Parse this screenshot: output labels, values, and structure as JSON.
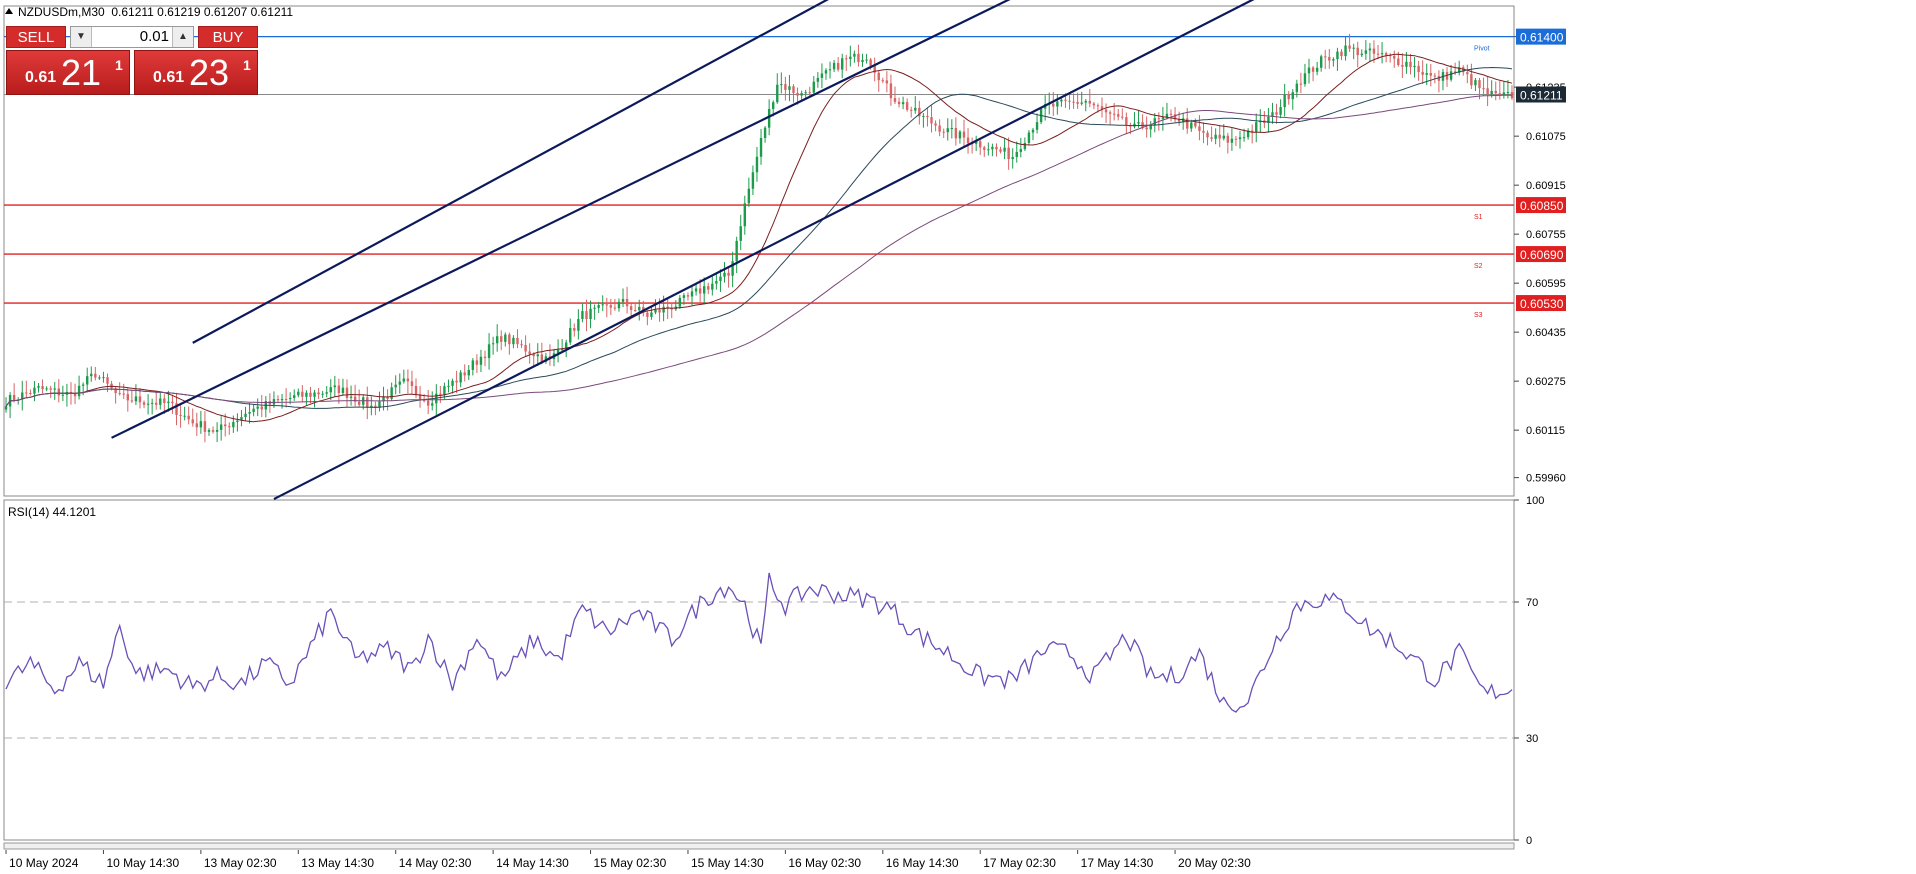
{
  "header": {
    "symbol": "NZDUSDm,M30",
    "ohlc": "0.61211 0.61219 0.61207 0.61211"
  },
  "trade_panel": {
    "sell_label": "SELL",
    "buy_label": "BUY",
    "lot": "0.01",
    "sell_small": "0.61",
    "sell_big": "21",
    "sell_sup": "1",
    "buy_small": "0.61",
    "buy_big": "23",
    "buy_sup": "1"
  },
  "colors": {
    "bull": "#1a9c4a",
    "bear": "#d86464",
    "channel": "#0c1a5c",
    "level": "#e02020",
    "pivot": "#1a6cd8",
    "ma_fast": "#7a1f1f",
    "ma_mid": "#2a4a5a",
    "ma_slow": "#7a4a7a",
    "rsi": "#6a50b8"
  },
  "chart_data": [
    {
      "type": "candlestick",
      "title": "NZDUSDm,M30",
      "ylim": [
        0.599,
        0.615
      ],
      "y_ticks": [
        "0.61400",
        "0.61235",
        "0.61075",
        "0.60915",
        "0.60755",
        "0.60595",
        "0.60435",
        "0.60275",
        "0.60115",
        "0.59960"
      ],
      "x_ticks": [
        "10 May 2024",
        "10 May 14:30",
        "13 May 02:30",
        "13 May 14:30",
        "14 May 02:30",
        "14 May 14:30",
        "15 May 02:30",
        "15 May 14:30",
        "16 May 02:30",
        "16 May 14:30",
        "17 May 02:30",
        "17 May 14:30",
        "20 May 02:30"
      ],
      "current_price": "0.61211",
      "close_path": [
        [
          0,
          0.6021
        ],
        [
          8,
          0.6025
        ],
        [
          16,
          0.6023
        ],
        [
          22,
          0.603
        ],
        [
          28,
          0.6022
        ],
        [
          40,
          0.602
        ],
        [
          46,
          0.6014
        ],
        [
          52,
          0.6011
        ],
        [
          60,
          0.6018
        ],
        [
          70,
          0.6022
        ],
        [
          82,
          0.6025
        ],
        [
          90,
          0.6019
        ],
        [
          98,
          0.6027
        ],
        [
          104,
          0.6021
        ],
        [
          112,
          0.6029
        ],
        [
          122,
          0.6042
        ],
        [
          134,
          0.6034
        ],
        [
          142,
          0.6049
        ],
        [
          152,
          0.6053
        ],
        [
          158,
          0.6049
        ],
        [
          166,
          0.6053
        ],
        [
          172,
          0.6058
        ],
        [
          178,
          0.6062
        ],
        [
          182,
          0.6085
        ],
        [
          186,
          0.6106
        ],
        [
          190,
          0.6125
        ],
        [
          196,
          0.6121
        ],
        [
          206,
          0.6132
        ],
        [
          212,
          0.6134
        ],
        [
          218,
          0.6121
        ],
        [
          224,
          0.6115
        ],
        [
          232,
          0.6109
        ],
        [
          240,
          0.6105
        ],
        [
          248,
          0.6101
        ],
        [
          256,
          0.6117
        ],
        [
          266,
          0.6119
        ],
        [
          272,
          0.6114
        ],
        [
          278,
          0.611
        ],
        [
          288,
          0.6114
        ],
        [
          296,
          0.6107
        ],
        [
          302,
          0.6106
        ],
        [
          306,
          0.6109
        ],
        [
          312,
          0.6114
        ],
        [
          318,
          0.6125
        ],
        [
          324,
          0.6132
        ],
        [
          330,
          0.6136
        ],
        [
          338,
          0.6134
        ],
        [
          346,
          0.6131
        ],
        [
          352,
          0.6126
        ],
        [
          358,
          0.6129
        ],
        [
          364,
          0.6122
        ],
        [
          368,
          0.612
        ],
        [
          371,
          0.6121
        ]
      ],
      "indicators": [
        "Moving Average (red)",
        "Moving Average (teal)",
        "Moving Average (purple)"
      ],
      "horizontal_levels": [
        {
          "price": "0.61400",
          "label": "Pivot",
          "color": "#1a6cd8"
        },
        {
          "price": "0.60850",
          "label": "S1",
          "color": "#e02020"
        },
        {
          "price": "0.60690",
          "label": "S2",
          "color": "#e02020"
        },
        {
          "price": "0.60530",
          "label": "S3",
          "color": "#e02020"
        }
      ],
      "channel_lines": [
        {
          "from": [
            "13 May 08:00",
            0.604
          ],
          "to": [
            "15 May 17:00",
            0.6154
          ]
        },
        {
          "from": [
            "13 May 02:30",
            0.6009
          ],
          "to": [
            "17 May 14:00",
            0.6154
          ]
        },
        {
          "from": [
            "14 May 00:00",
            0.5989
          ],
          "to": [
            "20 May 01:30",
            0.6154
          ]
        }
      ]
    },
    {
      "type": "line",
      "title": "RSI(14) 44.1201",
      "ylim": [
        0,
        100
      ],
      "y_ticks": [
        "100",
        "70",
        "30",
        "0"
      ],
      "reference_lines": [
        70,
        30
      ],
      "rsi_path": [
        [
          0,
          46
        ],
        [
          6,
          52
        ],
        [
          12,
          44
        ],
        [
          18,
          52
        ],
        [
          24,
          46
        ],
        [
          28,
          63
        ],
        [
          32,
          49
        ],
        [
          40,
          50
        ],
        [
          46,
          45
        ],
        [
          52,
          48
        ],
        [
          58,
          46
        ],
        [
          64,
          52
        ],
        [
          70,
          46
        ],
        [
          80,
          67
        ],
        [
          86,
          53
        ],
        [
          94,
          56
        ],
        [
          100,
          50
        ],
        [
          104,
          60
        ],
        [
          110,
          46
        ],
        [
          116,
          60
        ],
        [
          122,
          47
        ],
        [
          130,
          59
        ],
        [
          136,
          53
        ],
        [
          142,
          68
        ],
        [
          148,
          61
        ],
        [
          156,
          67
        ],
        [
          164,
          59
        ],
        [
          172,
          71
        ],
        [
          178,
          75
        ],
        [
          182,
          69
        ],
        [
          186,
          56
        ],
        [
          188,
          76
        ],
        [
          192,
          69
        ],
        [
          198,
          74
        ],
        [
          206,
          72
        ],
        [
          212,
          71
        ],
        [
          218,
          68
        ],
        [
          224,
          61
        ],
        [
          232,
          55
        ],
        [
          240,
          48
        ],
        [
          248,
          47
        ],
        [
          256,
          56
        ],
        [
          262,
          55
        ],
        [
          268,
          48
        ],
        [
          276,
          60
        ],
        [
          282,
          48
        ],
        [
          288,
          48
        ],
        [
          294,
          55
        ],
        [
          300,
          40
        ],
        [
          306,
          41
        ],
        [
          312,
          57
        ],
        [
          318,
          69
        ],
        [
          324,
          71
        ],
        [
          330,
          69
        ],
        [
          336,
          62
        ],
        [
          342,
          58
        ],
        [
          348,
          52
        ],
        [
          352,
          47
        ],
        [
          358,
          55
        ],
        [
          364,
          43
        ],
        [
          368,
          44
        ],
        [
          371,
          44.12
        ]
      ]
    }
  ]
}
